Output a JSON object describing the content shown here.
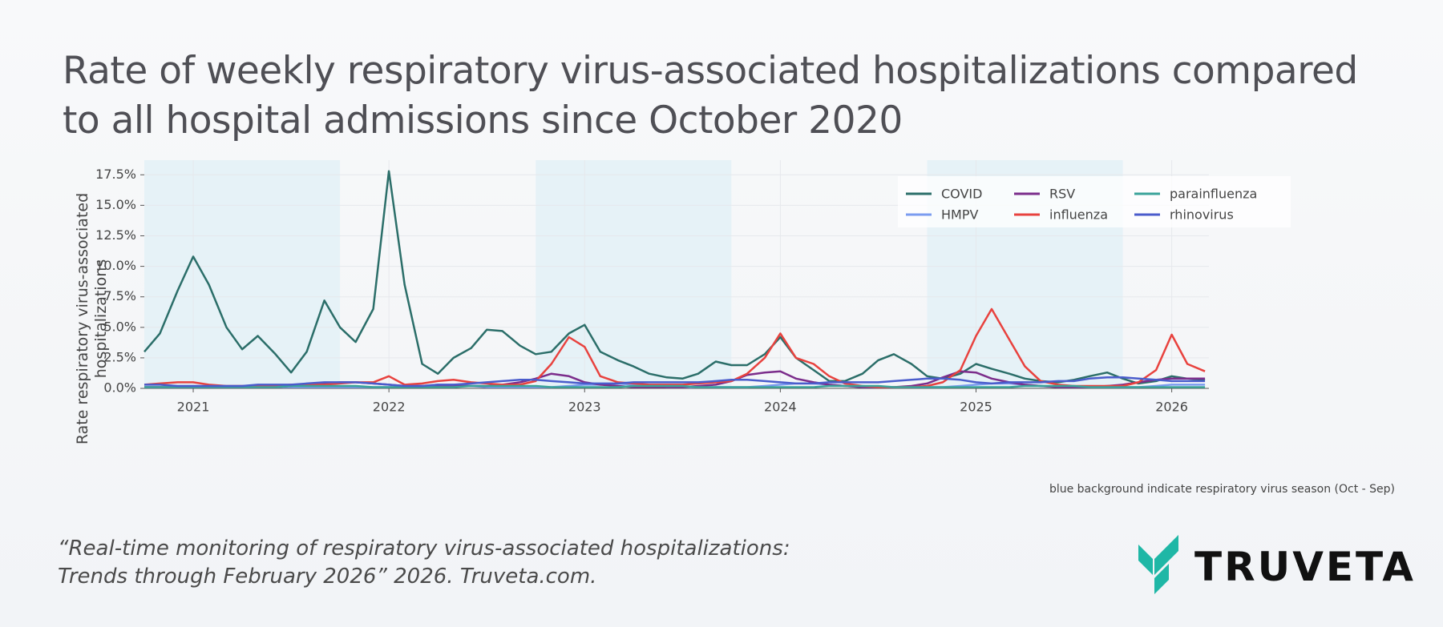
{
  "title": "Rate of weekly respiratory virus-associated hospitalizations compared to all hospital admissions since October 2020",
  "chart_data": {
    "type": "line",
    "ylabel": "Rate respiratory virus-associated hospitalizations",
    "note": "blue background indicate respiratory virus season (Oct - Sep)",
    "xlim": [
      2020.75,
      2026.19
    ],
    "xticks": [
      2021,
      2022,
      2023,
      2024,
      2025,
      2026
    ],
    "ylim": [
      0,
      18.7
    ],
    "yticks": [
      {
        "value": 0,
        "label": "0.0%"
      },
      {
        "value": 2.5,
        "label": "2.5%"
      },
      {
        "value": 5,
        "label": "5.0%"
      },
      {
        "value": 7.5,
        "label": "7.5%"
      },
      {
        "value": 10,
        "label": "10.0%"
      },
      {
        "value": 12.5,
        "label": "12.5%"
      },
      {
        "value": 15,
        "label": "15.0%"
      },
      {
        "value": 17.5,
        "label": "17.5%"
      }
    ],
    "grid": true,
    "seasons": [
      [
        2020.75,
        2021.75
      ],
      [
        2022.75,
        2023.75
      ],
      [
        2024.75,
        2025.75
      ]
    ],
    "season_color": "#e6f2f7",
    "legend": "upper right",
    "x": [
      2020.75,
      2020.83,
      2020.92,
      2021,
      2021.08,
      2021.17,
      2021.25,
      2021.33,
      2021.42,
      2021.5,
      2021.58,
      2021.67,
      2021.75,
      2021.83,
      2021.92,
      2022,
      2022.08,
      2022.17,
      2022.25,
      2022.33,
      2022.42,
      2022.5,
      2022.58,
      2022.67,
      2022.75,
      2022.83,
      2022.92,
      2023,
      2023.08,
      2023.17,
      2023.25,
      2023.33,
      2023.42,
      2023.5,
      2023.58,
      2023.67,
      2023.75,
      2023.83,
      2023.92,
      2024,
      2024.08,
      2024.17,
      2024.25,
      2024.33,
      2024.42,
      2024.5,
      2024.58,
      2024.67,
      2024.75,
      2024.83,
      2024.92,
      2025,
      2025.08,
      2025.17,
      2025.25,
      2025.33,
      2025.42,
      2025.5,
      2025.58,
      2025.67,
      2025.75,
      2025.83,
      2025.92,
      2026,
      2026.08,
      2026.17
    ],
    "series": [
      {
        "name": "COVID",
        "color": "#2b6e69",
        "values": [
          3.0,
          4.5,
          8.0,
          10.8,
          8.5,
          5.0,
          3.2,
          4.3,
          2.8,
          1.3,
          3.0,
          7.2,
          5.0,
          3.8,
          6.5,
          17.8,
          8.5,
          2.0,
          1.2,
          2.5,
          3.3,
          4.8,
          4.7,
          3.5,
          2.8,
          3.0,
          4.5,
          5.2,
          3.0,
          2.3,
          1.8,
          1.2,
          0.9,
          0.8,
          1.2,
          2.2,
          1.9,
          1.9,
          2.8,
          4.2,
          2.5,
          1.5,
          0.6,
          0.6,
          1.2,
          2.3,
          2.8,
          2.0,
          1.0,
          0.8,
          1.2,
          2.0,
          1.6,
          1.2,
          0.8,
          0.6,
          0.5,
          0.7,
          1.0,
          1.3,
          0.8,
          0.4,
          0.6,
          1.0,
          0.8,
          0.7
        ]
      },
      {
        "name": "HMPV",
        "color": "#7b9cf0",
        "values": [
          0.1,
          0.1,
          0.1,
          0.1,
          0.1,
          0.1,
          0.1,
          0.1,
          0.1,
          0.1,
          0.1,
          0.1,
          0.1,
          0.1,
          0.1,
          0.1,
          0.2,
          0.2,
          0.3,
          0.3,
          0.2,
          0.1,
          0.1,
          0.1,
          0.1,
          0.1,
          0.2,
          0.3,
          0.3,
          0.4,
          0.3,
          0.2,
          0.1,
          0.1,
          0.1,
          0.1,
          0.1,
          0.1,
          0.2,
          0.3,
          0.4,
          0.4,
          0.3,
          0.2,
          0.1,
          0.1,
          0.1,
          0.1,
          0.1,
          0.1,
          0.2,
          0.3,
          0.4,
          0.4,
          0.3,
          0.2,
          0.1,
          0.1,
          0.1,
          0.1,
          0.1,
          0.1,
          0.2,
          0.3,
          0.3,
          0.3
        ]
      },
      {
        "name": "RSV",
        "color": "#7b2d8b",
        "values": [
          0.1,
          0.1,
          0.1,
          0.1,
          0.1,
          0.1,
          0.1,
          0.1,
          0.1,
          0.2,
          0.3,
          0.4,
          0.5,
          0.5,
          0.4,
          0.3,
          0.2,
          0.2,
          0.2,
          0.2,
          0.2,
          0.2,
          0.3,
          0.5,
          0.8,
          1.2,
          1.0,
          0.5,
          0.3,
          0.2,
          0.1,
          0.1,
          0.1,
          0.1,
          0.2,
          0.3,
          0.6,
          1.1,
          1.3,
          1.4,
          0.8,
          0.5,
          0.3,
          0.2,
          0.1,
          0.1,
          0.1,
          0.2,
          0.4,
          0.9,
          1.4,
          1.3,
          0.8,
          0.5,
          0.3,
          0.2,
          0.1,
          0.1,
          0.1,
          0.2,
          0.3,
          0.5,
          0.7,
          0.8,
          0.8,
          0.8
        ]
      },
      {
        "name": "influenza",
        "color": "#e8423e",
        "values": [
          0.3,
          0.4,
          0.5,
          0.5,
          0.3,
          0.2,
          0.2,
          0.2,
          0.2,
          0.3,
          0.3,
          0.3,
          0.4,
          0.5,
          0.5,
          1.0,
          0.3,
          0.4,
          0.6,
          0.7,
          0.5,
          0.4,
          0.3,
          0.3,
          0.6,
          2.0,
          4.2,
          3.4,
          1.0,
          0.5,
          0.4,
          0.3,
          0.3,
          0.3,
          0.4,
          0.5,
          0.6,
          1.2,
          2.5,
          4.5,
          2.5,
          2.0,
          1.0,
          0.4,
          0.2,
          0.1,
          0.1,
          0.1,
          0.2,
          0.5,
          1.5,
          4.3,
          6.5,
          4.0,
          1.8,
          0.6,
          0.3,
          0.2,
          0.2,
          0.2,
          0.2,
          0.5,
          1.5,
          4.4,
          2.0,
          1.4
        ]
      },
      {
        "name": "parainfluenza",
        "color": "#3aa39a",
        "values": [
          0.1,
          0.1,
          0.1,
          0.1,
          0.1,
          0.1,
          0.1,
          0.1,
          0.1,
          0.2,
          0.2,
          0.2,
          0.2,
          0.2,
          0.1,
          0.1,
          0.1,
          0.1,
          0.1,
          0.1,
          0.2,
          0.2,
          0.2,
          0.2,
          0.2,
          0.1,
          0.1,
          0.1,
          0.1,
          0.1,
          0.2,
          0.2,
          0.2,
          0.2,
          0.1,
          0.1,
          0.1,
          0.1,
          0.1,
          0.1,
          0.1,
          0.1,
          0.2,
          0.2,
          0.2,
          0.2,
          0.1,
          0.1,
          0.1,
          0.1,
          0.1,
          0.1,
          0.1,
          0.1,
          0.2,
          0.2,
          0.2,
          0.2,
          0.1,
          0.1,
          0.1,
          0.1,
          0.1,
          0.1,
          0.1,
          0.1
        ]
      },
      {
        "name": "rhinovirus",
        "color": "#4a5ccc",
        "values": [
          0.3,
          0.3,
          0.2,
          0.2,
          0.2,
          0.2,
          0.2,
          0.3,
          0.3,
          0.3,
          0.4,
          0.5,
          0.5,
          0.5,
          0.4,
          0.3,
          0.2,
          0.2,
          0.3,
          0.3,
          0.4,
          0.5,
          0.6,
          0.7,
          0.7,
          0.6,
          0.5,
          0.4,
          0.4,
          0.4,
          0.5,
          0.5,
          0.5,
          0.5,
          0.5,
          0.6,
          0.7,
          0.7,
          0.6,
          0.5,
          0.4,
          0.4,
          0.5,
          0.5,
          0.5,
          0.5,
          0.6,
          0.7,
          0.8,
          0.8,
          0.7,
          0.5,
          0.4,
          0.5,
          0.5,
          0.5,
          0.6,
          0.6,
          0.8,
          0.9,
          0.9,
          0.8,
          0.7,
          0.6,
          0.6,
          0.6
        ]
      }
    ]
  },
  "citation": [
    "“Real-time monitoring of respiratory virus-associated hospitalizations:",
    "Trends through February 2026” 2026. Truveta.com."
  ],
  "logo": "TRUVETA"
}
